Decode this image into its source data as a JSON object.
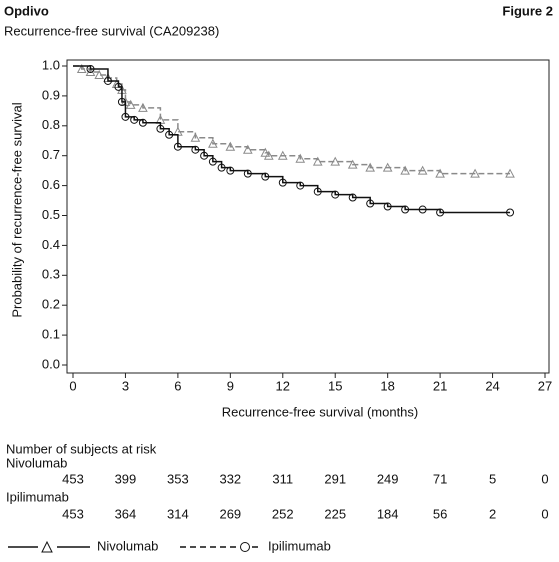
{
  "chart_data": {
    "type": "line",
    "title": "Opdivo",
    "figure_label": "Figure 2",
    "subtitle": "Recurrence-free survival (CA209238)",
    "x_label": "Recurrence-free survival (months)",
    "y_label": "Probability of recurrence-free survival",
    "step": true,
    "xlim": [
      0,
      27
    ],
    "xticks": [
      0,
      3,
      6,
      9,
      12,
      15,
      18,
      21,
      24,
      27
    ],
    "ylim": [
      0,
      1
    ],
    "yticks": [
      {
        "value": 0,
        "label": "0.0"
      },
      0.1,
      0.2,
      0.3,
      0.4,
      0.5,
      0.6,
      0.7,
      0.8,
      0.9,
      {
        "value": 1,
        "label": "1.0"
      }
    ],
    "series": [
      {
        "name": "Nivolumab",
        "color": "#8a8a8a",
        "dashed": true,
        "marker": "triangle",
        "x": [
          0,
          0.5,
          1,
          1.5,
          2,
          2.5,
          2.8,
          3,
          3.3,
          4,
          5,
          6,
          7,
          8,
          9,
          10,
          11,
          11.2,
          12,
          13,
          14,
          15,
          16,
          17,
          18,
          19,
          20,
          21,
          23,
          25
        ],
        "values": [
          1.0,
          0.99,
          0.98,
          0.97,
          0.96,
          0.94,
          0.92,
          0.88,
          0.87,
          0.86,
          0.82,
          0.78,
          0.76,
          0.74,
          0.73,
          0.72,
          0.71,
          0.7,
          0.7,
          0.69,
          0.68,
          0.68,
          0.67,
          0.66,
          0.66,
          0.65,
          0.65,
          0.64,
          0.64,
          0.64
        ]
      },
      {
        "name": "Ipilimumab",
        "color": "#111111",
        "dashed": false,
        "marker": "circle",
        "x": [
          0,
          1,
          2,
          2.6,
          2.8,
          3,
          3.5,
          4,
          5,
          5.5,
          6,
          7,
          7.5,
          8,
          8.5,
          9,
          10,
          11,
          12,
          13,
          14,
          15,
          16,
          17,
          18,
          19,
          20,
          21,
          25
        ],
        "values": [
          1.0,
          0.99,
          0.95,
          0.93,
          0.88,
          0.83,
          0.82,
          0.81,
          0.79,
          0.77,
          0.73,
          0.72,
          0.7,
          0.68,
          0.66,
          0.65,
          0.64,
          0.63,
          0.61,
          0.6,
          0.58,
          0.57,
          0.56,
          0.54,
          0.53,
          0.52,
          0.52,
          0.51,
          0.51
        ]
      }
    ],
    "risk_table": {
      "title": "Number of subjects at risk",
      "rows": [
        {
          "name": "Nivolumab",
          "values": [
            453,
            399,
            353,
            332,
            311,
            291,
            249,
            71,
            5,
            0
          ]
        },
        {
          "name": "Ipilimumab",
          "values": [
            453,
            364,
            314,
            269,
            252,
            225,
            184,
            56,
            2,
            0
          ]
        }
      ]
    }
  }
}
